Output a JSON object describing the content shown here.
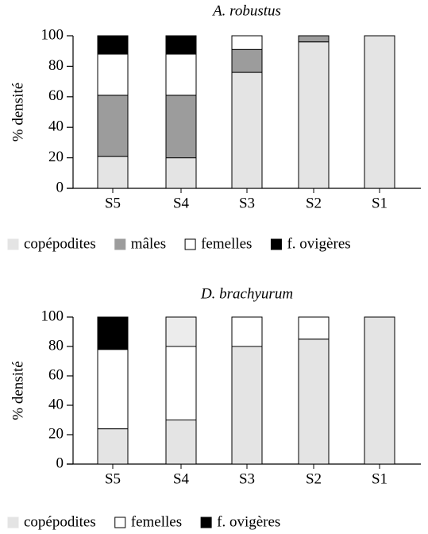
{
  "chart_data": [
    {
      "type": "stacked_bar",
      "title": "A. robustus",
      "ylabel": "% densité",
      "categories": [
        "S5",
        "S4",
        "S3",
        "S2",
        "S1"
      ],
      "series": [
        {
          "name": "copépodites",
          "color": "#e4e4e4",
          "values": [
            21,
            20,
            76,
            96,
            100
          ]
        },
        {
          "name": "mâles",
          "color": "#9c9c9c",
          "values": [
            40,
            41,
            15,
            4,
            0
          ]
        },
        {
          "name": "femelles",
          "color": "#ffffff",
          "values": [
            27,
            27,
            9,
            0,
            0
          ]
        },
        {
          "name": "f. ovigères",
          "color": "#000000",
          "values": [
            12,
            12,
            0,
            0,
            0
          ]
        }
      ],
      "ylim": [
        0,
        100
      ],
      "yticks": [
        0,
        20,
        40,
        60,
        80,
        100
      ]
    },
    {
      "type": "stacked_bar",
      "title": "D. brachyurum",
      "ylabel": "% densité",
      "categories": [
        "S5",
        "S4",
        "S3",
        "S2",
        "S1"
      ],
      "series": [
        {
          "name": "copépodites",
          "color": "#e4e4e4",
          "values": [
            24,
            30,
            80,
            85,
            100
          ]
        },
        {
          "name": "femelles",
          "color": "#ffffff",
          "values": [
            54,
            50,
            20,
            15,
            0
          ]
        },
        {
          "name": "f. ovigères",
          "color": "#000000",
          "values": [
            22,
            0,
            0,
            0,
            0
          ]
        },
        {
          "color": "#ececec",
          "values": [
            0,
            20,
            0,
            0,
            0
          ]
        }
      ],
      "ylim": [
        0,
        100
      ],
      "yticks": [
        0,
        20,
        40,
        60,
        80,
        100
      ]
    }
  ]
}
